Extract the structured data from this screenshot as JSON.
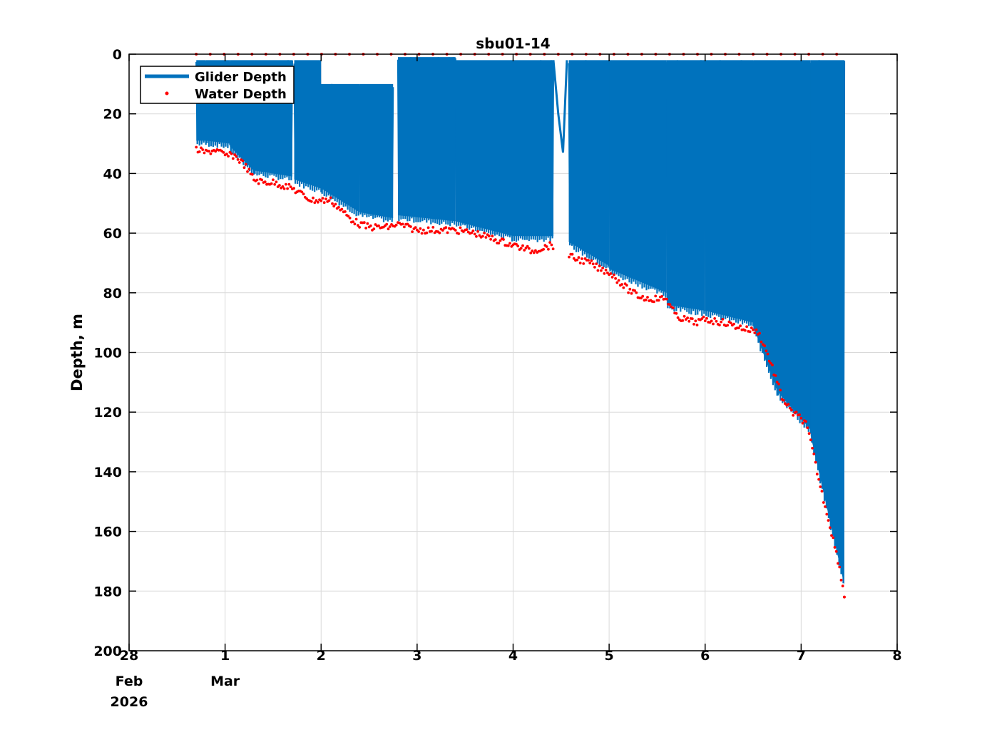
{
  "chart_data": {
    "type": "line",
    "title": "sbu01-14",
    "xlabel": "",
    "ylabel": "Depth, m",
    "xlim": [
      0,
      8
    ],
    "ylim": [
      0,
      200
    ],
    "y_reversed": true,
    "grid": true,
    "legend_position": "top-left",
    "x_ticks": [
      0,
      1,
      2,
      3,
      4,
      5,
      6,
      7,
      8
    ],
    "x_tick_labels": [
      "28",
      "1",
      "2",
      "3",
      "4",
      "5",
      "6",
      "7",
      "8"
    ],
    "x_tick_sublabels": [
      {
        "x": 0,
        "lines": [
          "Feb",
          "2026"
        ]
      },
      {
        "x": 1,
        "lines": [
          "Mar"
        ]
      }
    ],
    "y_ticks": [
      0,
      20,
      40,
      60,
      80,
      100,
      120,
      140,
      160,
      180,
      200
    ],
    "y_tick_labels": [
      "0",
      "20",
      "40",
      "60",
      "80",
      "100",
      "120",
      "140",
      "160",
      "180",
      "200"
    ],
    "series": [
      {
        "name": "Glider Depth",
        "color": "#0072bd",
        "style": "yo-profile",
        "segments": [
          {
            "start": 0.7,
            "end": 0.8,
            "top": 2,
            "bottom_start": 31,
            "bottom_end": 31
          },
          {
            "start": 0.8,
            "end": 1.05,
            "top": 2,
            "bottom_start": 31,
            "bottom_end": 32
          },
          {
            "start": 1.05,
            "end": 1.3,
            "top": 2,
            "bottom_start": 33,
            "bottom_end": 41
          },
          {
            "start": 1.3,
            "end": 1.7,
            "top": 2,
            "bottom_start": 41,
            "bottom_end": 43
          },
          {
            "start": 1.72,
            "end": 2.0,
            "top": 2,
            "bottom_start": 44,
            "bottom_end": 47
          },
          {
            "start": 2.0,
            "end": 2.4,
            "top": 10,
            "bottom_start": 47,
            "bottom_end": 55
          },
          {
            "start": 2.4,
            "end": 2.75,
            "top": 10,
            "bottom_start": 55,
            "bottom_end": 57
          },
          {
            "start": 2.8,
            "end": 3.4,
            "top": 1,
            "bottom_start": 56,
            "bottom_end": 58
          },
          {
            "start": 3.4,
            "end": 4.0,
            "top": 2,
            "bottom_start": 58,
            "bottom_end": 63
          },
          {
            "start": 4.0,
            "end": 4.42,
            "top": 2,
            "bottom_start": 63,
            "bottom_end": 63
          },
          {
            "start": 4.58,
            "end": 5.0,
            "top": 2,
            "bottom_start": 65,
            "bottom_end": 73
          },
          {
            "start": 5.0,
            "end": 5.6,
            "top": 2,
            "bottom_start": 74,
            "bottom_end": 82
          },
          {
            "start": 5.6,
            "end": 6.0,
            "top": 2,
            "bottom_start": 86,
            "bottom_end": 88
          },
          {
            "start": 6.0,
            "end": 6.5,
            "top": 2,
            "bottom_start": 88,
            "bottom_end": 92
          },
          {
            "start": 6.5,
            "end": 6.75,
            "top": 2,
            "bottom_start": 93,
            "bottom_end": 115
          },
          {
            "start": 6.75,
            "end": 7.1,
            "top": 2,
            "bottom_start": 115,
            "bottom_end": 128
          },
          {
            "start": 7.1,
            "end": 7.45,
            "top": 2,
            "bottom_start": 130,
            "bottom_end": 180
          }
        ],
        "transit_dip": {
          "x": [
            4.42,
            4.47,
            4.52,
            4.56
          ],
          "y": [
            2,
            20,
            33,
            2
          ]
        }
      },
      {
        "name": "Water Depth",
        "color": "#ff0000",
        "style": "dots",
        "x": [
          0.7,
          0.8,
          0.9,
          1.0,
          1.1,
          1.2,
          1.3,
          1.4,
          1.5,
          1.6,
          1.7,
          1.8,
          1.9,
          2.0,
          2.1,
          2.2,
          2.3,
          2.4,
          2.5,
          2.6,
          2.7,
          2.8,
          2.9,
          3.0,
          3.2,
          3.4,
          3.6,
          3.8,
          4.0,
          4.2,
          4.4,
          4.6,
          4.7,
          4.8,
          4.9,
          5.0,
          5.1,
          5.2,
          5.3,
          5.4,
          5.5,
          5.6,
          5.7,
          5.8,
          5.9,
          6.0,
          6.2,
          6.4,
          6.55,
          6.62,
          6.7,
          6.8,
          6.9,
          7.0,
          7.05,
          7.1,
          7.2,
          7.3,
          7.4,
          7.45
        ],
        "y": [
          32,
          33,
          32,
          34,
          34,
          37,
          42,
          43,
          43,
          44,
          45,
          47,
          49,
          49,
          49,
          52,
          55,
          57,
          58,
          58,
          58,
          57,
          58,
          59,
          59,
          59,
          60,
          62,
          64,
          66,
          64,
          68,
          69,
          70,
          72,
          73,
          76,
          79,
          81,
          82,
          82,
          82,
          88,
          89,
          90,
          89,
          90,
          92,
          93,
          98,
          105,
          115,
          120,
          122,
          124,
          130,
          145,
          158,
          172,
          182
        ],
        "surface_dots_y": 0
      }
    ]
  }
}
